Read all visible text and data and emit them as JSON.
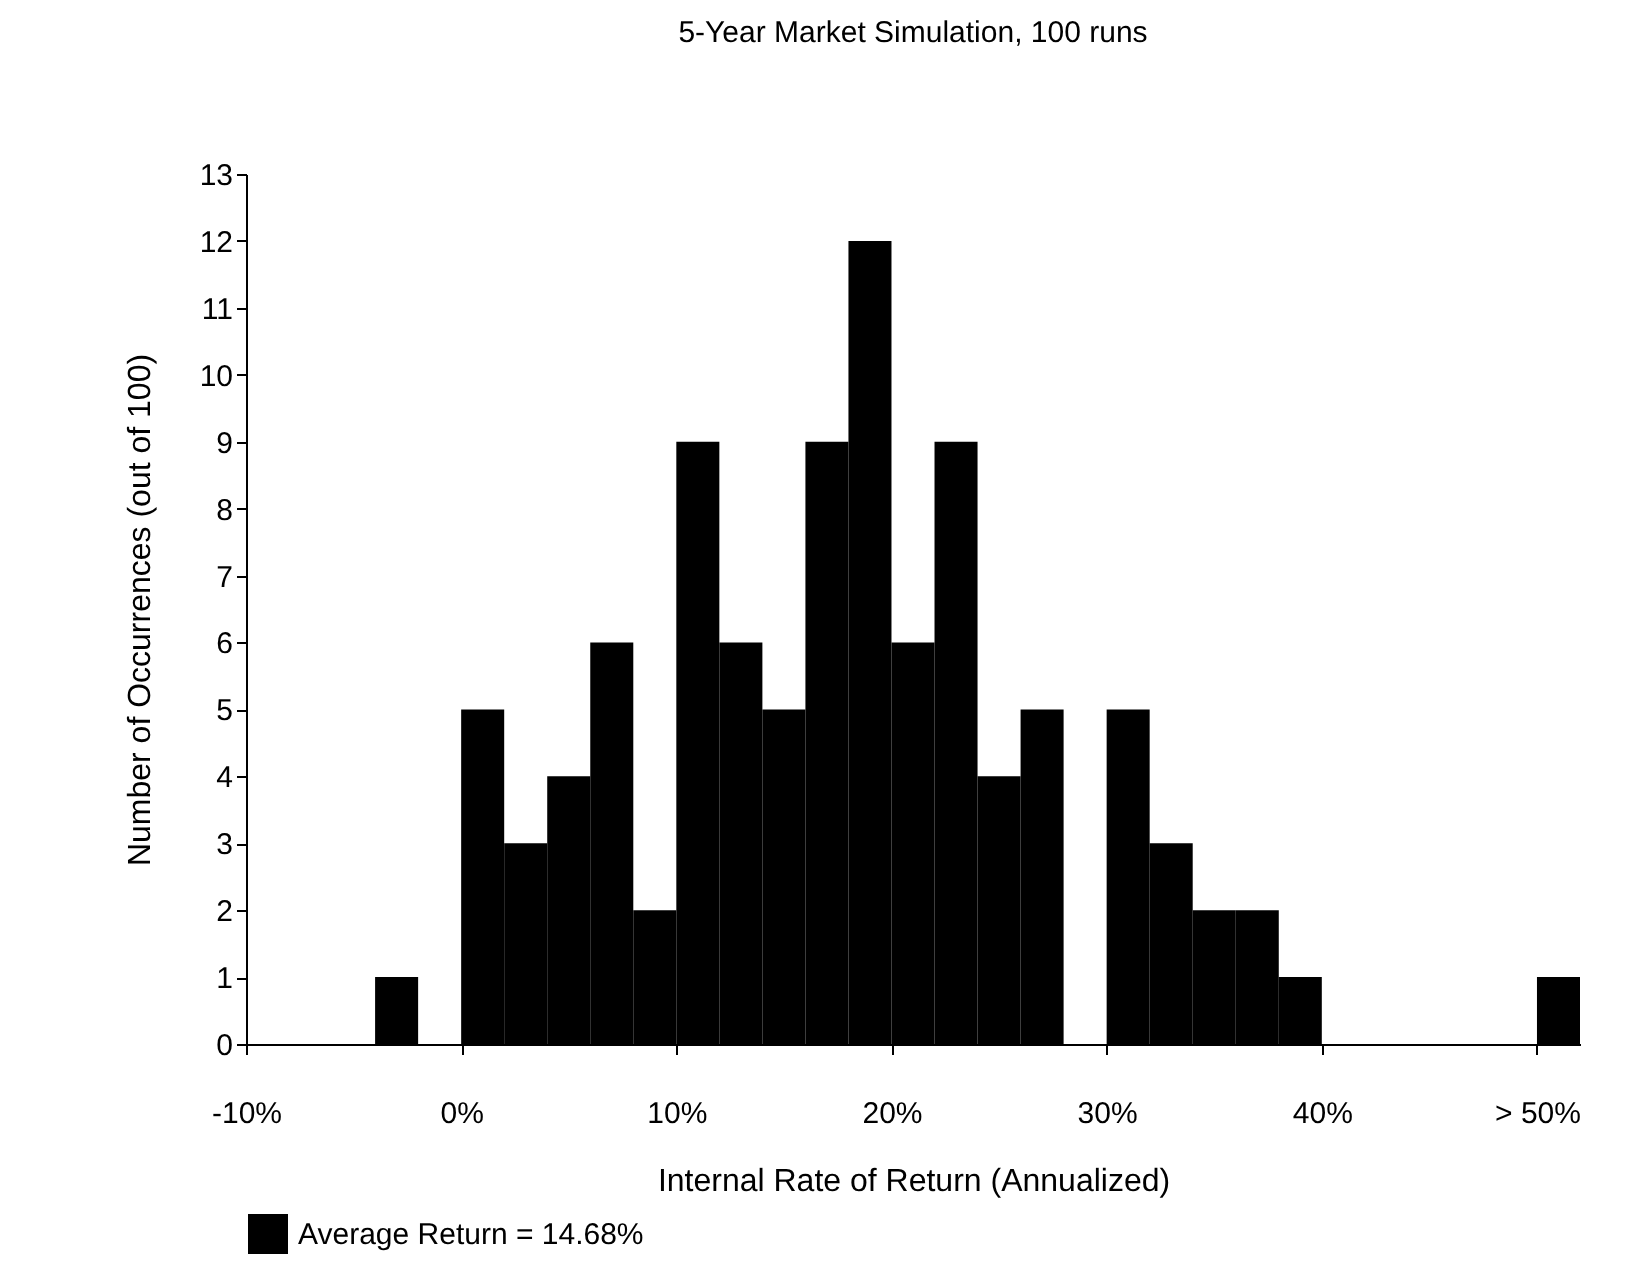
{
  "chart_data": {
    "type": "histogram",
    "title": "5-Year Market Simulation, 100 runs",
    "xlabel": "Internal Rate of Return (Annualized)",
    "ylabel": "Number of Occurrences (out of 100)",
    "bins": [
      -10,
      -8,
      -6,
      -4,
      -2,
      0,
      2,
      4,
      6,
      8,
      10,
      12,
      14,
      16,
      18,
      20,
      22,
      24,
      26,
      28,
      30,
      32,
      34,
      36,
      38,
      40,
      42,
      44,
      46,
      48,
      50,
      52
    ],
    "series": [
      {
        "name": "Average Return = 14.68%",
        "color": "#000000",
        "values": [
          0,
          0,
          0,
          1,
          0,
          5,
          3,
          4,
          6,
          2,
          9,
          6,
          5,
          9,
          12,
          6,
          9,
          4,
          5,
          0,
          5,
          3,
          2,
          2,
          1,
          0,
          0,
          0,
          0,
          0,
          1
        ]
      }
    ],
    "xlim": [
      -10,
      52
    ],
    "xticks": [
      {
        "value": -10,
        "label": "-10%"
      },
      {
        "value": 0,
        "label": "0%"
      },
      {
        "value": 10,
        "label": "10%"
      },
      {
        "value": 20,
        "label": "20%"
      },
      {
        "value": 30,
        "label": "30%"
      },
      {
        "value": 40,
        "label": "40%"
      },
      {
        "value": 50,
        "label": "> 50%"
      }
    ],
    "ylim": [
      0,
      13
    ],
    "yticks": [
      0,
      1,
      2,
      3,
      4,
      5,
      6,
      7,
      8,
      9,
      10,
      11,
      12,
      13
    ],
    "grid": false,
    "legend": "bottom"
  }
}
